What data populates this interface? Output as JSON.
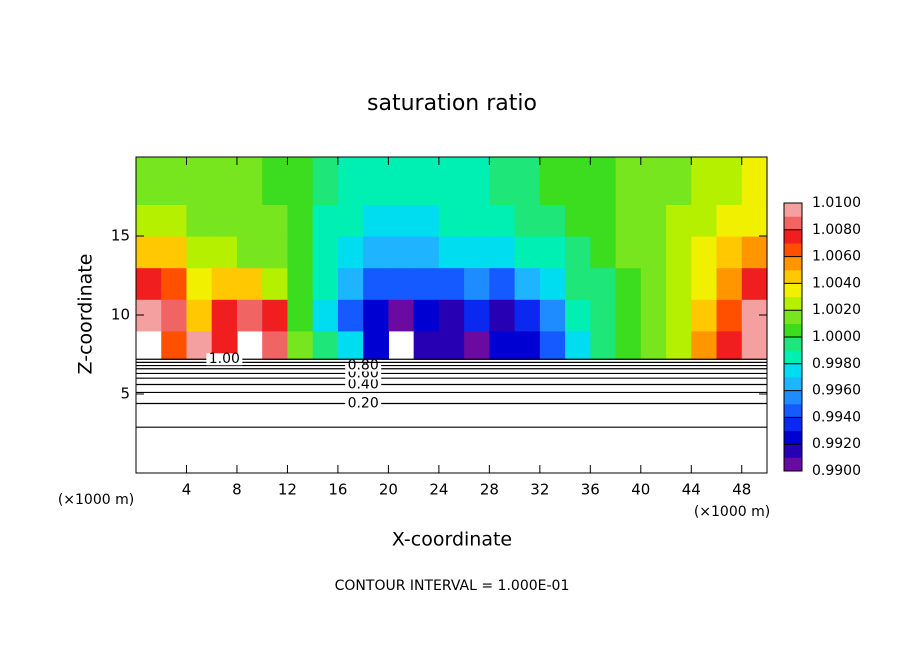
{
  "chart_data": {
    "type": "contour",
    "title": "saturation ratio",
    "x_label": "X-coordinate",
    "y_label": "Z-coordinate",
    "x_unit": "(×1000 m)",
    "footer": "CONTOUR INTERVAL = 1.000E-01",
    "xlim": [
      0,
      50
    ],
    "ylim": [
      0,
      20
    ],
    "xticks": [
      4,
      8,
      12,
      16,
      20,
      24,
      28,
      32,
      36,
      40,
      44,
      48
    ],
    "yticks": [
      5,
      10,
      15
    ],
    "xbins": [
      0,
      2,
      4,
      6,
      8,
      10,
      12,
      14,
      16,
      18,
      20,
      22,
      24,
      26,
      28,
      30,
      32,
      34,
      36,
      38,
      40,
      42,
      44,
      46,
      48,
      50
    ],
    "zbins": [
      7.2,
      9,
      11,
      13,
      15,
      17,
      20
    ],
    "field": [
      [
        null,
        1.006,
        1.009,
        1.007,
        null,
        1.008,
        1.001,
        0.9995,
        0.9975,
        0.992,
        null,
        0.9915,
        0.991,
        0.9905,
        0.992,
        0.9925,
        0.9945,
        0.997,
        0.9995,
        1.0005,
        1.001,
        1.0025,
        1.005,
        1.0075,
        1.009
      ],
      [
        1.0095,
        1.008,
        1.0045,
        1.007,
        1.0085,
        1.0075,
        1.0005,
        0.9975,
        0.9945,
        0.9925,
        0.9905,
        0.9925,
        0.9915,
        0.9935,
        0.9915,
        0.993,
        0.9955,
        0.998,
        0.9995,
        1.0005,
        1.001,
        1.0025,
        1.004,
        1.0065,
        1.009
      ],
      [
        1.0075,
        1.006,
        1.0035,
        1.0045,
        1.004,
        1.0025,
        1.0005,
        0.998,
        0.996,
        0.9945,
        0.994,
        0.9945,
        0.9945,
        0.995,
        0.9945,
        0.996,
        0.9975,
        0.999,
        0.9995,
        1.0005,
        1.001,
        1.002,
        1.0035,
        1.0055,
        1.0075
      ],
      [
        1.0045,
        1.004,
        1.0025,
        1.002,
        1.0015,
        1.001,
        1.0005,
        0.9985,
        0.9975,
        0.9965,
        0.9965,
        0.9965,
        0.997,
        0.997,
        0.9975,
        0.998,
        0.9985,
        0.9995,
        1.0005,
        1.001,
        1.0015,
        1.002,
        1.003,
        1.0045,
        1.0055
      ],
      [
        1.0025,
        1.0025,
        1.0015,
        1.0015,
        1.001,
        1.001,
        1.0005,
        0.9985,
        0.998,
        0.9975,
        0.9975,
        0.9975,
        0.998,
        0.998,
        0.9985,
        0.999,
        0.9995,
        1.0005,
        1.0005,
        1.001,
        1.0015,
        1.002,
        1.0025,
        1.003,
        1.0035
      ],
      [
        1.0015,
        1.0015,
        1.001,
        1.001,
        1.001,
        1.0005,
        1.0005,
        0.999,
        0.9985,
        0.9985,
        0.9985,
        0.9985,
        0.9985,
        0.9985,
        0.999,
        0.9995,
        1.0,
        1.0005,
        1.0005,
        1.001,
        1.001,
        1.0015,
        1.002,
        1.0025,
        1.003
      ]
    ],
    "color_levels": [
      0.99,
      0.991,
      0.992,
      0.993,
      0.994,
      0.995,
      0.996,
      0.997,
      0.998,
      0.999,
      1.0,
      1.001,
      1.002,
      1.003,
      1.004,
      1.005,
      1.006,
      1.007,
      1.008,
      1.009,
      1.01
    ],
    "colors": [
      "#6a0aa0",
      "#2800b4",
      "#0000d2",
      "#0a28f0",
      "#145aff",
      "#1e8cff",
      "#1eb4ff",
      "#00dcf0",
      "#00f0b4",
      "#1ee678",
      "#3cdc1e",
      "#78e61e",
      "#b4f000",
      "#f0f000",
      "#ffc800",
      "#ff9600",
      "#ff5000",
      "#f01e1e",
      "#f06464",
      "#f5a0a0"
    ],
    "colorbar_ticks": [
      {
        "value": 1.01,
        "label": "1.0100"
      },
      {
        "value": 1.008,
        "label": "1.0080"
      },
      {
        "value": 1.006,
        "label": "1.0060"
      },
      {
        "value": 1.004,
        "label": "1.0040"
      },
      {
        "value": 1.002,
        "label": "1.0020"
      },
      {
        "value": 1.0,
        "label": "1.0000"
      },
      {
        "value": 0.998,
        "label": "0.9980"
      },
      {
        "value": 0.996,
        "label": "0.9960"
      },
      {
        "value": 0.994,
        "label": "0.9940"
      },
      {
        "value": 0.992,
        "label": "0.9920"
      },
      {
        "value": 0.99,
        "label": "0.9900"
      }
    ],
    "contours": [
      {
        "level": 0.1,
        "z": 2.9
      },
      {
        "level": {
          "value": 0.2,
          "label": "0.20"
        },
        "z": 4.4
      },
      {
        "level": 0.3,
        "z": 5.1
      },
      {
        "level": {
          "value": 0.4,
          "label": "0.40"
        },
        "z": 5.6
      },
      {
        "level": 0.5,
        "z": 6.0
      },
      {
        "level": {
          "value": 0.6,
          "label": "0.60"
        },
        "z": 6.3
      },
      {
        "level": 0.7,
        "z": 6.6
      },
      {
        "level": {
          "value": 0.8,
          "label": "0.80"
        },
        "z": 6.8
      },
      {
        "level": 0.9,
        "z": 7.0
      },
      {
        "level": {
          "value": 1.0,
          "label": "1.00"
        },
        "z": 7.2
      }
    ]
  }
}
